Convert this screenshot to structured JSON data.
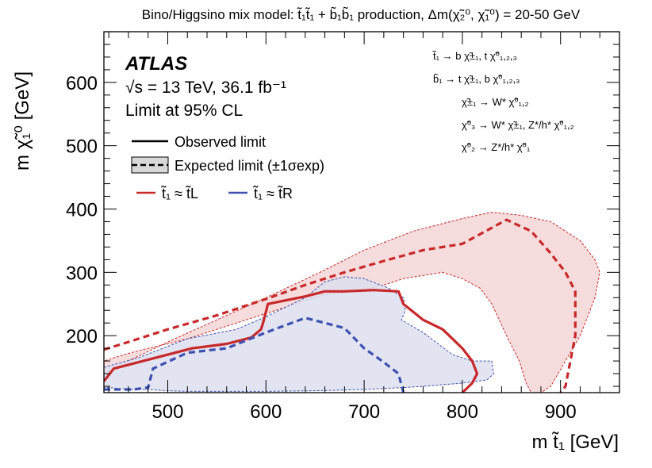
{
  "chart_data": {
    "type": "line",
    "title": "Bino/Higgsino mix model: t̃₁t̃₁ + b̃₁b̃₁ production, Δm(χ̃₂⁰, χ̃₁⁰) = 20-50 GeV",
    "experiment": "ATLAS",
    "energy_lumi": "√s = 13 TeV, 36.1 fb⁻¹",
    "cl_text": "Limit at 95% CL",
    "xlabel": "m t̃₁ [GeV]",
    "ylabel": "m χ̃₁⁰ [GeV]",
    "xlim": [
      435,
      960
    ],
    "ylim": [
      110,
      680
    ],
    "xticks": [
      500,
      600,
      700,
      800,
      900
    ],
    "yticks": [
      200,
      300,
      400,
      500,
      600
    ],
    "decays": [
      "t̃₁ → b χ̃±₁, t χ̃⁰₁,₂,₃",
      "b̃₁ → t χ̃±₁, b χ̃⁰₁,₂,₃",
      "χ̃±₁ → W* χ̃⁰₁,₂",
      "χ̃⁰₃ → W* χ̃±₁, Z*/h* χ̃⁰₁,₂",
      "χ̃⁰₂ → Z*/h* χ̃⁰₁"
    ],
    "legend": {
      "observed": "Observed limit",
      "expected": "Expected limit (±1σexp)",
      "left": "t̃₁ ≈ t̃L",
      "right": "t̃₁ ≈ t̃R"
    },
    "colors": {
      "red": "#c8282a",
      "red_band": "#f5d8d8",
      "blue": "#4050b0",
      "blue_band": "#dddfee"
    },
    "series": [
      {
        "name": "t̃₁ ≈ t̃L expected ±1σ band",
        "kind": "band",
        "color": "red",
        "x": [
          435,
          460,
          500,
          600,
          655,
          700,
          750,
          800,
          830,
          860,
          890,
          920,
          935,
          940,
          935,
          920,
          905,
          890,
          880,
          870,
          865,
          858,
          845,
          830,
          818,
          800,
          780,
          760,
          740,
          720,
          700,
          680,
          660,
          640,
          620,
          600,
          580,
          560,
          540,
          520,
          500,
          480,
          460,
          445,
          435
        ],
        "y": [
          140,
          160,
          190,
          260,
          300,
          335,
          365,
          385,
          395,
          390,
          380,
          350,
          320,
          300,
          260,
          200,
          160,
          120,
          110,
          110,
          125,
          160,
          200,
          250,
          275,
          290,
          300,
          295,
          290,
          280,
          272,
          268,
          265,
          255,
          245,
          235,
          225,
          215,
          205,
          195,
          187,
          180,
          172,
          165,
          160
        ]
      },
      {
        "name": "t̃₁ ≈ t̃L expected limit",
        "kind": "expected",
        "color": "red",
        "x": [
          435,
          460,
          500,
          550,
          600,
          640,
          680,
          720,
          760,
          800,
          845,
          870,
          890,
          905,
          915,
          915,
          905,
          900
        ],
        "y": [
          178,
          190,
          210,
          232,
          258,
          280,
          300,
          318,
          335,
          345,
          383,
          365,
          330,
          300,
          270,
          200,
          120,
          110
        ]
      },
      {
        "name": "t̃₁ ≈ t̃L observed limit",
        "kind": "observed",
        "color": "red",
        "x": [
          435,
          445,
          470,
          500,
          525,
          560,
          585,
          595,
          597,
          602,
          640,
          660,
          680,
          710,
          735,
          740,
          760,
          780,
          800,
          810,
          815,
          810,
          800
        ],
        "y": [
          128,
          148,
          158,
          170,
          180,
          187,
          197,
          210,
          220,
          250,
          262,
          270,
          270,
          272,
          270,
          250,
          225,
          210,
          180,
          160,
          140,
          125,
          110
        ]
      },
      {
        "name": "t̃₁ ≈ t̃R expected ±1σ band",
        "kind": "band",
        "color": "blue",
        "x": [
          435,
          470,
          520,
          570,
          600,
          640,
          660,
          680,
          700,
          725,
          740,
          742,
          738,
          760,
          790,
          810,
          830,
          832,
          825,
          800,
          760,
          740,
          700,
          650,
          600,
          560,
          520,
          500,
          480,
          460,
          440,
          435
        ],
        "y": [
          150,
          165,
          195,
          210,
          230,
          260,
          285,
          293,
          290,
          275,
          260,
          240,
          225,
          205,
          170,
          160,
          160,
          140,
          130,
          125,
          120,
          118,
          115,
          113,
          112,
          112,
          112,
          113,
          115,
          115,
          118,
          118
        ]
      },
      {
        "name": "t̃₁ ≈ t̃R expected limit",
        "kind": "expected",
        "color": "blue",
        "x": [
          435,
          465,
          480,
          485,
          520,
          560,
          600,
          640,
          680,
          700,
          720,
          735,
          740
        ],
        "y": [
          115,
          115,
          118,
          148,
          173,
          180,
          205,
          228,
          212,
          180,
          158,
          140,
          110
        ]
      }
    ]
  }
}
